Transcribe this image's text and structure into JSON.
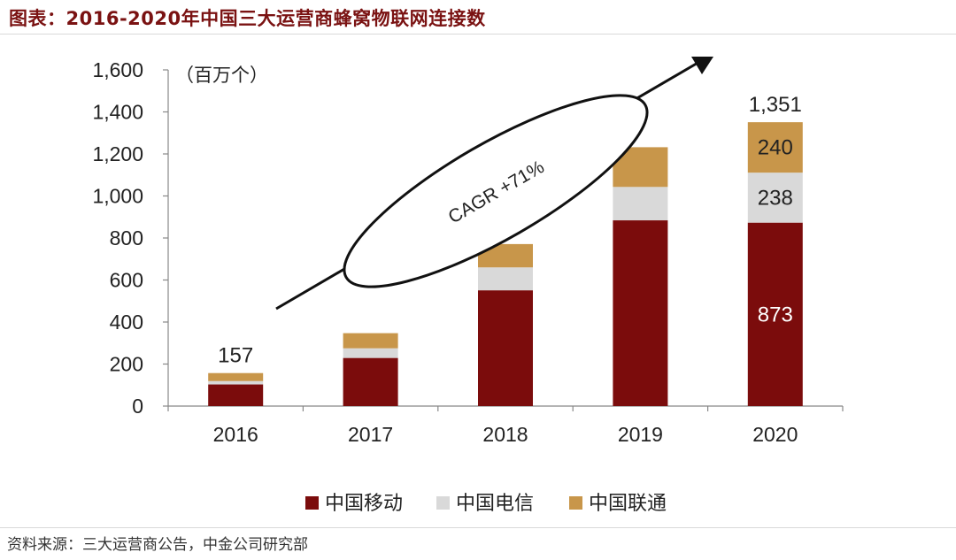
{
  "header": {
    "title": "图表：2016-2020年中国三大运营商蜂窝物联网连接数"
  },
  "footer": {
    "source": "资料来源：三大运营商公告，中金公司研究部"
  },
  "chart_data": {
    "type": "bar",
    "stacked": true,
    "unit_label": "（百万个）",
    "categories": [
      "2016",
      "2017",
      "2018",
      "2019",
      "2020"
    ],
    "series": [
      {
        "name": "中国移动",
        "color": "#7b0c0c",
        "values": [
          103,
          229,
          551,
          884,
          873
        ]
      },
      {
        "name": "中国电信",
        "color": "#d9d9d9",
        "values": [
          16,
          46,
          109,
          159,
          238
        ]
      },
      {
        "name": "中国联通",
        "color": "#c8964a",
        "values": [
          38,
          72,
          111,
          189,
          240
        ]
      }
    ],
    "totals": [
      157,
      null,
      null,
      null,
      1351
    ],
    "total_labels": [
      "157",
      "",
      "",
      "",
      "1,351"
    ],
    "segment_labels": [
      {
        "category": "2020",
        "series": "中国移动",
        "text": "873"
      },
      {
        "category": "2020",
        "series": "中国电信",
        "text": "238"
      },
      {
        "category": "2020",
        "series": "中国联通",
        "text": "240"
      }
    ],
    "ylim": [
      0,
      1600
    ],
    "yticks": [
      0,
      200,
      400,
      600,
      800,
      1000,
      1200,
      1400,
      1600
    ],
    "ytick_labels": [
      "0",
      "200",
      "400",
      "600",
      "800",
      "1,000",
      "1,200",
      "1,400",
      "1,600"
    ],
    "annotation": "CAGR +71%",
    "legend_position": "bottom",
    "grid": false
  }
}
